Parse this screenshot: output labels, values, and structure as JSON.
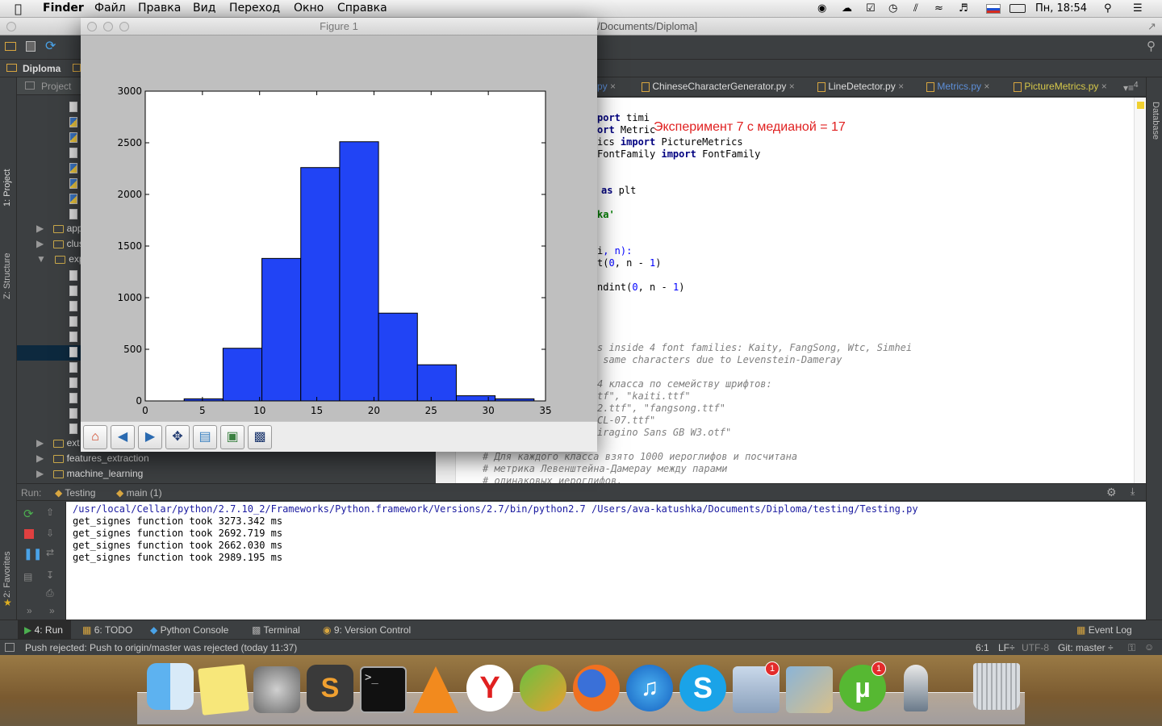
{
  "menubar": {
    "app": "Finder",
    "items": [
      "Файл",
      "Правка",
      "Вид",
      "Переход",
      "Окно",
      "Справка"
    ],
    "clock": "Пн, 18:54"
  },
  "ide": {
    "title_fragment": "/Documents/Diploma]",
    "nav_root": "Diploma",
    "project_label": "Project",
    "side_tabs": {
      "project": "1: Project",
      "structure": "Z: Structure",
      "favorites": "2: Favorites",
      "database": "Database"
    },
    "tree": [
      "app",
      "clus",
      "exp",
      "ext",
      "features_extraction",
      "machine_learning"
    ],
    "tabs": [
      {
        "label": "py",
        "color": "#5d8fd8"
      },
      {
        "label": "ChineseCharacterGenerator.py",
        "color": "#dddddd"
      },
      {
        "label": "LineDetector.py",
        "color": "#dddddd"
      },
      {
        "label": "Metrics.py",
        "color": "#5d8fd8"
      },
      {
        "label": "PictureMetrics.py",
        "color": "#d6c84a"
      }
    ],
    "tabs_count": "4",
    "annotation": "Эксперимент 7 с медианой = 17",
    "code": {
      "l1a": "port",
      "l1b": " timi",
      "l2a": "ort",
      "l2b": " Metric",
      "l3a": "ics ",
      "l3k": "import",
      "l3b": " PictureMetrics",
      "l4a": "FontFamily ",
      "l4k": "import",
      "l4b": " FontFamily",
      "l5k": "as",
      "l5b": " plt",
      "l6": "ka'",
      "l7a": "i",
      "l7b": ", n):",
      "l8a": "t(",
      "l8n1": "0",
      "l8b": ", n - ",
      "l8n2": "1",
      "l8c": ")",
      "l9a": "ndint(",
      "l9n1": "0",
      "l9b": ", n - ",
      "l9n2": "1",
      "l9c": ")",
      "c1": "s inside 4 font families: Kaity, FangSong, Wtc, Simhei",
      "c2": " same characters due to Levenstein-Dameray",
      "c3": "4 класса по семейству шрифтов:",
      "c4": "tf\", \"kaiti.ttf\"",
      "c5": "2.ttf\", \"fangsong.ttf\"",
      "c6": "CL-07.ttf\"",
      "c7": "iragino Sans GB W3.otf\"",
      "c8": "# Для каждого класса взято 1000 иероглифов и посчитана",
      "c9": "# метрика Левенштейна-Дамерау между парами",
      "c10": "# одинаковых иероглифов."
    },
    "run": {
      "label": "Run:",
      "tab1": "Testing",
      "tab2": "main (1)",
      "lines": [
        "/usr/local/Cellar/python/2.7.10_2/Frameworks/Python.framework/Versions/2.7/bin/python2.7 /Users/ava-katushka/Documents/Diploma/testing/Testing.py",
        "get_signes function took 3273.342 ms",
        "get_signes function took 2692.719 ms",
        "get_signes function took 2662.030 ms",
        "get_signes function took 2989.195 ms"
      ]
    },
    "bottom_tabs": {
      "run": "4: Run",
      "todo": "6: TODO",
      "console": "Python Console",
      "terminal": "Terminal",
      "vcs": "9: Version Control",
      "eventlog": "Event Log"
    },
    "status": {
      "message": "Push rejected: Push to origin/master was rejected (today 11:37)",
      "position": "6:1",
      "line_sep": "LF÷",
      "encoding": "UTF-8",
      "git": "Git: master ÷"
    }
  },
  "figure": {
    "title": "Figure 1",
    "toolbar": [
      "home-icon",
      "back-icon",
      "forward-icon",
      "pan-icon",
      "configure-icon",
      "subplots-icon",
      "save-icon"
    ]
  },
  "chart_data": {
    "type": "bar",
    "title": "",
    "xlabel": "",
    "ylabel": "",
    "bar_color": "#2144f5",
    "xlim": [
      0,
      35
    ],
    "ylim": [
      0,
      3000
    ],
    "xticks": [
      0,
      5,
      10,
      15,
      20,
      25,
      30,
      35
    ],
    "yticks": [
      0,
      500,
      1000,
      1500,
      2000,
      2500,
      3000
    ],
    "bins": [
      {
        "x0": 3.4,
        "x1": 6.8,
        "value": 20
      },
      {
        "x0": 6.8,
        "x1": 10.2,
        "value": 510
      },
      {
        "x0": 10.2,
        "x1": 13.6,
        "value": 1380
      },
      {
        "x0": 13.6,
        "x1": 17.0,
        "value": 2260
      },
      {
        "x0": 17.0,
        "x1": 20.4,
        "value": 2510
      },
      {
        "x0": 20.4,
        "x1": 23.8,
        "value": 850
      },
      {
        "x0": 23.8,
        "x1": 27.2,
        "value": 350
      },
      {
        "x0": 27.2,
        "x1": 30.6,
        "value": 50
      },
      {
        "x0": 30.6,
        "x1": 34.0,
        "value": 20
      }
    ]
  },
  "dock": {
    "badges": {
      "mail": "1",
      "utorrent": "1"
    }
  }
}
